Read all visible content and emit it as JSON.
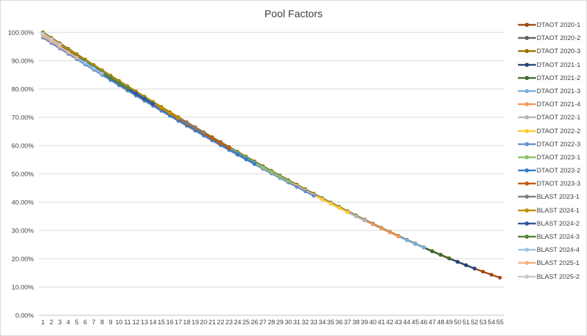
{
  "chart_data": {
    "type": "line",
    "title": "Pool Factors",
    "xlabel": "",
    "ylabel": "",
    "x": [
      1,
      2,
      3,
      4,
      5,
      6,
      7,
      8,
      9,
      10,
      11,
      12,
      13,
      14,
      15,
      16,
      17,
      18,
      19,
      20,
      21,
      22,
      23,
      24,
      25,
      26,
      27,
      28,
      29,
      30,
      31,
      32,
      33,
      34,
      35,
      36,
      37,
      38,
      39,
      40,
      41,
      42,
      43,
      44,
      45,
      46,
      47,
      48,
      49,
      50,
      51,
      52,
      53,
      54,
      55
    ],
    "ylim": [
      0,
      100
    ],
    "y_ticks": [
      "0.00%",
      "10.00%",
      "20.00%",
      "30.00%",
      "40.00%",
      "50.00%",
      "60.00%",
      "70.00%",
      "80.00%",
      "90.00%",
      "100.00%"
    ],
    "grid": true,
    "legend_position": "right",
    "series": [
      {
        "name": "DTAOT 2020-1",
        "color": "#9e480e",
        "start_y": 98.5,
        "length": 55
      },
      {
        "name": "DTAOT 2020-2",
        "color": "#636363",
        "start_y": 98.3,
        "length": 52
      },
      {
        "name": "DTAOT 2020-3",
        "color": "#997300",
        "start_y": 98.4,
        "length": 51
      },
      {
        "name": "DTAOT 2021-1",
        "color": "#264478",
        "start_y": 98.1,
        "length": 52
      },
      {
        "name": "DTAOT 2021-2",
        "color": "#43682b",
        "start_y": 98.0,
        "length": 49
      },
      {
        "name": "DTAOT 2021-3",
        "color": "#7cafdd",
        "start_y": 97.6,
        "length": 46
      },
      {
        "name": "DTAOT 2021-4",
        "color": "#f1975a",
        "start_y": 97.6,
        "length": 43
      },
      {
        "name": "DTAOT 2022-1",
        "color": "#b7b7b7",
        "start_y": 97.2,
        "length": 39
      },
      {
        "name": "DTAOT 2022-2",
        "color": "#ffcd33",
        "start_y": 97.0,
        "length": 37
      },
      {
        "name": "DTAOT 2022-3",
        "color": "#698ed0",
        "start_y": 96.6,
        "length": 33
      },
      {
        "name": "DTAOT 2023-1",
        "color": "#8cc168",
        "start_y": 97.4,
        "length": 30
      },
      {
        "name": "DTAOT 2023-2",
        "color": "#327dc2",
        "start_y": 96.8,
        "length": 26
      },
      {
        "name": "DTAOT 2023-3",
        "color": "#c55a11",
        "start_y": 97.9,
        "length": 23
      },
      {
        "name": "BLAST 2023-1",
        "color": "#7f7f7f",
        "start_y": 98.2,
        "length": 20
      },
      {
        "name": "BLAST 2024-1",
        "color": "#bf9000",
        "start_y": 97.9,
        "length": 17
      },
      {
        "name": "BLAST 2024-2",
        "color": "#2f5597",
        "start_y": 97.7,
        "length": 14
      },
      {
        "name": "BLAST 2024-3",
        "color": "#548235",
        "start_y": 97.5,
        "length": 11
      },
      {
        "name": "BLAST 2024-4",
        "color": "#9dc3e6",
        "start_y": 96.9,
        "length": 8
      },
      {
        "name": "BLAST 2025-1",
        "color": "#f4b183",
        "start_y": 97.3,
        "length": 5
      },
      {
        "name": "BLAST 2025-2",
        "color": "#c9c9c9",
        "start_y": 98.0,
        "length": 3
      }
    ]
  }
}
